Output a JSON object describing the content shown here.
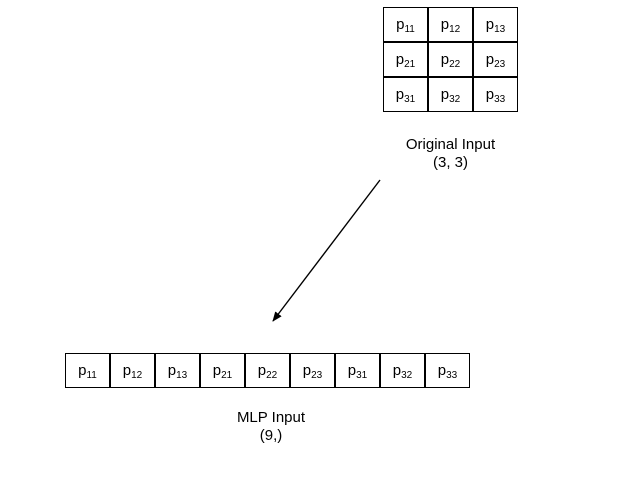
{
  "original": {
    "cells": [
      {
        "base": "p",
        "sub": "11"
      },
      {
        "base": "p",
        "sub": "12"
      },
      {
        "base": "p",
        "sub": "13"
      },
      {
        "base": "p",
        "sub": "21"
      },
      {
        "base": "p",
        "sub": "22"
      },
      {
        "base": "p",
        "sub": "23"
      },
      {
        "base": "p",
        "sub": "31"
      },
      {
        "base": "p",
        "sub": "32"
      },
      {
        "base": "p",
        "sub": "33"
      }
    ],
    "caption": "Original Input",
    "shape": "(3, 3)"
  },
  "mlp": {
    "cells": [
      {
        "base": "p",
        "sub": "11"
      },
      {
        "base": "p",
        "sub": "12"
      },
      {
        "base": "p",
        "sub": "13"
      },
      {
        "base": "p",
        "sub": "21"
      },
      {
        "base": "p",
        "sub": "22"
      },
      {
        "base": "p",
        "sub": "23"
      },
      {
        "base": "p",
        "sub": "31"
      },
      {
        "base": "p",
        "sub": "32"
      },
      {
        "base": "p",
        "sub": "33"
      }
    ],
    "caption": "MLP Input",
    "shape": "(9,)"
  }
}
